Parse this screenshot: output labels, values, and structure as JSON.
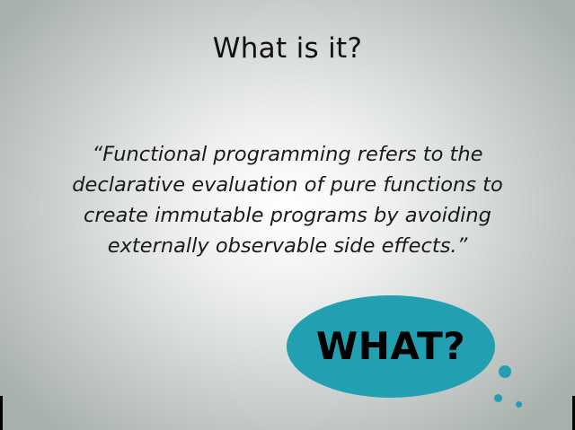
{
  "slide": {
    "title": "What is it?",
    "quote_lines": [
      "“Functional programming refers to the",
      "declarative evaluation of pure functions to",
      "create immutable programs by avoiding",
      "externally observable side effects.”"
    ],
    "bubble_text": "WHAT?"
  },
  "colors": {
    "bubble": "#22a0b2",
    "text": "#111111"
  }
}
